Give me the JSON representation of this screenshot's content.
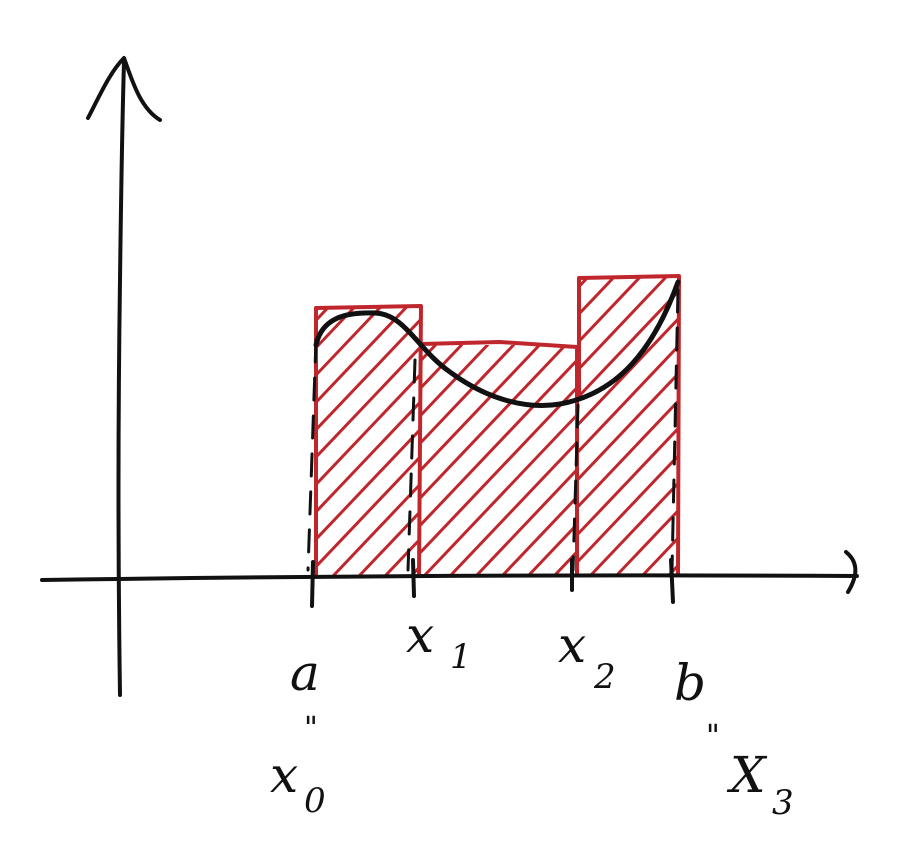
{
  "figure": {
    "type": "riemann-sum-upper-rectangles",
    "colors": {
      "ink": "#111111",
      "rect": "#c0272d"
    },
    "labels": {
      "a": "a",
      "b": "b",
      "x0": "x",
      "x0_sub": "0",
      "x1": "x",
      "x1_sub": "1",
      "x2": "x",
      "x2_sub": "2",
      "x3": "X",
      "x3_sub": "3",
      "equals_mark": "\""
    }
  }
}
